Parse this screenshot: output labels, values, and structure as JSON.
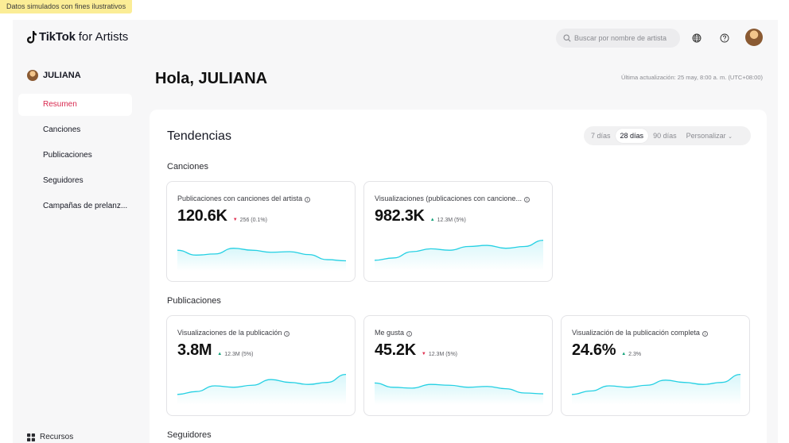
{
  "banner": "Datos simulados con fines ilustrativos",
  "brand": {
    "tiktok": "TikTok",
    "suffix": "for Artists"
  },
  "search": {
    "placeholder": "Buscar por nombre de artista"
  },
  "icons": {
    "globe": "globe-icon",
    "help": "help-icon",
    "search": "search-icon",
    "info": "info-icon",
    "resources": "grid-icon"
  },
  "colors": {
    "accent": "#d8284e",
    "spark": "#25d0e3",
    "up": "#16a37b",
    "down": "#e02e4f"
  },
  "sidebar": {
    "user": "JULIANA",
    "items": [
      {
        "label": "Resumen",
        "active": true
      },
      {
        "label": "Canciones"
      },
      {
        "label": "Publicaciones"
      },
      {
        "label": "Seguidores"
      },
      {
        "label": "Campañas de prelanz..."
      }
    ],
    "resources": "Recursos"
  },
  "main": {
    "greeting": "Hola, JULIANA",
    "last_update": "Última actualización: 25 may, 8:00 a. m. (UTC+08:00)",
    "trends_title": "Tendencias",
    "period": [
      "7 días",
      "28 días",
      "90 días",
      "Personalizar"
    ],
    "period_selected": "28 días",
    "sections": {
      "songs": "Canciones",
      "posts": "Publicaciones",
      "followers": "Seguidores"
    },
    "cards": [
      {
        "title": "Publicaciones con canciones del artista",
        "value": "120.6K",
        "direction": "down",
        "change": "256 (0.1%)",
        "sparkline": [
          0.55,
          0.38,
          0.42,
          0.62,
          0.55,
          0.48,
          0.5,
          0.4,
          0.22,
          0.18
        ]
      },
      {
        "title": "Visualizaciones (publicaciones con cancione...",
        "value": "982.3K",
        "direction": "up",
        "change": "12.3M (5%)",
        "sparkline": [
          0.2,
          0.28,
          0.5,
          0.6,
          0.55,
          0.68,
          0.72,
          0.62,
          0.68,
          0.9
        ]
      },
      {
        "title": "Visualizaciones de la publicación",
        "value": "3.8M",
        "direction": "up",
        "change": "12.3M (5%)",
        "sparkline": [
          0.2,
          0.3,
          0.5,
          0.45,
          0.52,
          0.72,
          0.62,
          0.55,
          0.62,
          0.9
        ]
      },
      {
        "title": "Me gusta",
        "value": "45.2K",
        "direction": "down",
        "change": "12.3M (5%)",
        "sparkline": [
          0.6,
          0.45,
          0.42,
          0.55,
          0.52,
          0.45,
          0.48,
          0.4,
          0.25,
          0.22
        ]
      },
      {
        "title": "Visualización de la publicación completa",
        "value": "24.6%",
        "direction": "up",
        "change": "2.3%",
        "sparkline": [
          0.2,
          0.32,
          0.5,
          0.45,
          0.52,
          0.7,
          0.62,
          0.55,
          0.62,
          0.9
        ]
      }
    ]
  }
}
